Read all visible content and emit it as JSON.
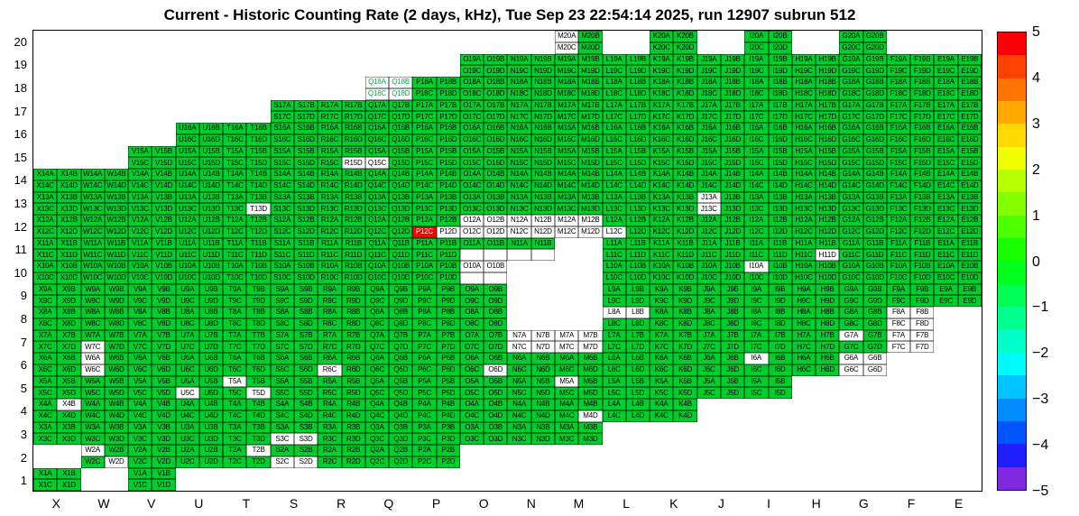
{
  "title": "Current - Historic Counting Rate (2 days, kHz), Tue Sep 23 22:54:14 2025, run 12907 subrun 512",
  "colors": {
    "cell_green": "#00cd2e",
    "cell_white": "#ffffff",
    "cell_red": "#ff0000",
    "frame": "#000000",
    "text": "#000000"
  },
  "colorbar": {
    "tick_labels": [
      "5",
      "4",
      "3",
      "2",
      "1",
      "0",
      "−1",
      "−2",
      "−3",
      "−4",
      "−5"
    ],
    "colors_top_to_bottom": [
      "#fb0007",
      "#fc4100",
      "#fd7500",
      "#fea800",
      "#ffd900",
      "#efff00",
      "#b9ff00",
      "#84ff00",
      "#4eff00",
      "#19ff00",
      "#00ff1c",
      "#00ff55",
      "#00ff8f",
      "#00ffc8",
      "#00fbff",
      "#00c3ff",
      "#008cff",
      "#0055ff",
      "#1e1eff",
      "#7f2ae0"
    ]
  },
  "chart_data": {
    "type": "heatmap",
    "title": "Current - Historic Counting Rate (2 days, kHz), Tue Sep 23 22:54:14 2025, run 12907 subrun 512",
    "xlabel": "",
    "ylabel": "",
    "zlim": [
      -5,
      5
    ],
    "legend_position": "right-colorbar",
    "x_categories": [
      "X",
      "W",
      "V",
      "U",
      "T",
      "S",
      "R",
      "Q",
      "P",
      "O",
      "N",
      "M",
      "L",
      "K",
      "J",
      "I",
      "H",
      "G",
      "F",
      "E"
    ],
    "y_categories": [
      20,
      19,
      18,
      17,
      16,
      15,
      14,
      13,
      12,
      11,
      10,
      9,
      8,
      7,
      6,
      5,
      4,
      3,
      2,
      1
    ],
    "cell_channels": [
      "A",
      "B",
      "C",
      "D"
    ],
    "label_format": "{column}{row}{channel}",
    "value_legend": {
      "green_cells_approx_kHz_delta": 0.5,
      "white_cells_approx_kHz_delta": 0,
      "red_cells_approx_kHz_delta": 5
    },
    "presence": {
      "20": [
        "M",
        "K",
        "I",
        "G"
      ],
      "19": [
        "O",
        "N",
        "M",
        "L",
        "K",
        "J",
        "I",
        "H",
        "G",
        "F",
        "E"
      ],
      "18": [
        "Q",
        "P",
        "O",
        "N",
        "M",
        "L",
        "K",
        "J",
        "I",
        "H",
        "G",
        "F",
        "E"
      ],
      "17": [
        "S",
        "R",
        "Q",
        "P",
        "O",
        "N",
        "M",
        "L",
        "K",
        "J",
        "I",
        "H",
        "G",
        "F",
        "E"
      ],
      "16": [
        "U",
        "T",
        "S",
        "R",
        "Q",
        "P",
        "O",
        "N",
        "M",
        "L",
        "K",
        "J",
        "I",
        "H",
        "G",
        "F",
        "E"
      ],
      "15": [
        "V",
        "U",
        "T",
        "S",
        "R",
        "Q",
        "P",
        "O",
        "N",
        "M",
        "L",
        "K",
        "J",
        "I",
        "H",
        "G",
        "F",
        "E"
      ],
      "14": [
        "X",
        "W",
        "V",
        "U",
        "T",
        "S",
        "R",
        "Q",
        "P",
        "O",
        "N",
        "M",
        "L",
        "K",
        "J",
        "I",
        "H",
        "G",
        "F",
        "E"
      ],
      "13": [
        "X",
        "W",
        "V",
        "U",
        "T",
        "S",
        "R",
        "Q",
        "P",
        "O",
        "N",
        "M",
        "L",
        "K",
        "J",
        "I",
        "H",
        "G",
        "F",
        "E"
      ],
      "12": [
        "X",
        "W",
        "V",
        "U",
        "T",
        "S",
        "R",
        "Q",
        "P",
        "O",
        "N",
        "M",
        "L",
        "K",
        "J",
        "I",
        "H",
        "G",
        "F",
        "E"
      ],
      "11": [
        "X",
        "W",
        "V",
        "U",
        "T",
        "S",
        "R",
        "Q",
        "P",
        "O",
        "N",
        "L",
        "K",
        "J",
        "I",
        "H",
        "G",
        "F",
        "E"
      ],
      "10": [
        "X",
        "W",
        "V",
        "U",
        "T",
        "S",
        "R",
        "Q",
        "P",
        "O",
        "L",
        "K",
        "J",
        "I",
        "H",
        "G",
        "F",
        "E"
      ],
      "9": [
        "X",
        "W",
        "V",
        "U",
        "T",
        "S",
        "R",
        "Q",
        "P",
        "O",
        "L",
        "K",
        "J",
        "I",
        "H",
        "G",
        "F",
        "E"
      ],
      "8": [
        "X",
        "W",
        "V",
        "U",
        "T",
        "S",
        "R",
        "Q",
        "P",
        "O",
        "L",
        "K",
        "J",
        "I",
        "H",
        "G",
        "F"
      ],
      "7": [
        "X",
        "W",
        "V",
        "U",
        "T",
        "S",
        "R",
        "Q",
        "P",
        "O",
        "N",
        "M",
        "L",
        "K",
        "J",
        "I",
        "H",
        "G",
        "F"
      ],
      "6": [
        "X",
        "W",
        "V",
        "U",
        "T",
        "S",
        "R",
        "Q",
        "P",
        "O",
        "N",
        "M",
        "L",
        "K",
        "J",
        "I",
        "H",
        "G"
      ],
      "5": [
        "X",
        "W",
        "V",
        "U",
        "T",
        "S",
        "R",
        "Q",
        "P",
        "O",
        "N",
        "M",
        "L",
        "K",
        "J",
        "I"
      ],
      "4": [
        "X",
        "W",
        "V",
        "U",
        "T",
        "S",
        "R",
        "Q",
        "P",
        "O",
        "N",
        "M",
        "L",
        "K"
      ],
      "3": [
        "X",
        "W",
        "V",
        "U",
        "T",
        "S",
        "R",
        "Q",
        "P",
        "O",
        "N",
        "M"
      ],
      "2": [
        "W",
        "V",
        "U",
        "T",
        "S",
        "R",
        "Q",
        "P"
      ],
      "1": [
        "X",
        "V"
      ]
    },
    "zero_channels_white": [
      "M20A",
      "M20C",
      "R15D",
      "Q15C",
      "T13D",
      "J13A",
      "J13C",
      "P12D",
      "L12C",
      "H11D",
      "I10A",
      "L8A",
      "L8B",
      "W7C",
      "G7A",
      "W6A",
      "W6C",
      "R6C",
      "O6D",
      "I6A",
      "U5C",
      "T5A",
      "T5D",
      "M5A",
      "X4B",
      "M4D",
      "S3C",
      "S3D",
      "W2A",
      "W2D",
      "T2B",
      "S2C",
      "S2D"
    ],
    "zero_cells_white": [
      "Q18",
      "O12",
      "N12",
      "M12",
      "O10",
      "N7",
      "M7",
      "F8",
      "F7",
      "G6"
    ],
    "blank_channels": [
      "O11C",
      "O11D",
      "N11C",
      "N11D",
      "O10C",
      "O10D"
    ],
    "hot_channels_red": {
      "P12C": 5
    },
    "cell_text_color_overrides": {
      "Q18": "#00aa44"
    }
  }
}
